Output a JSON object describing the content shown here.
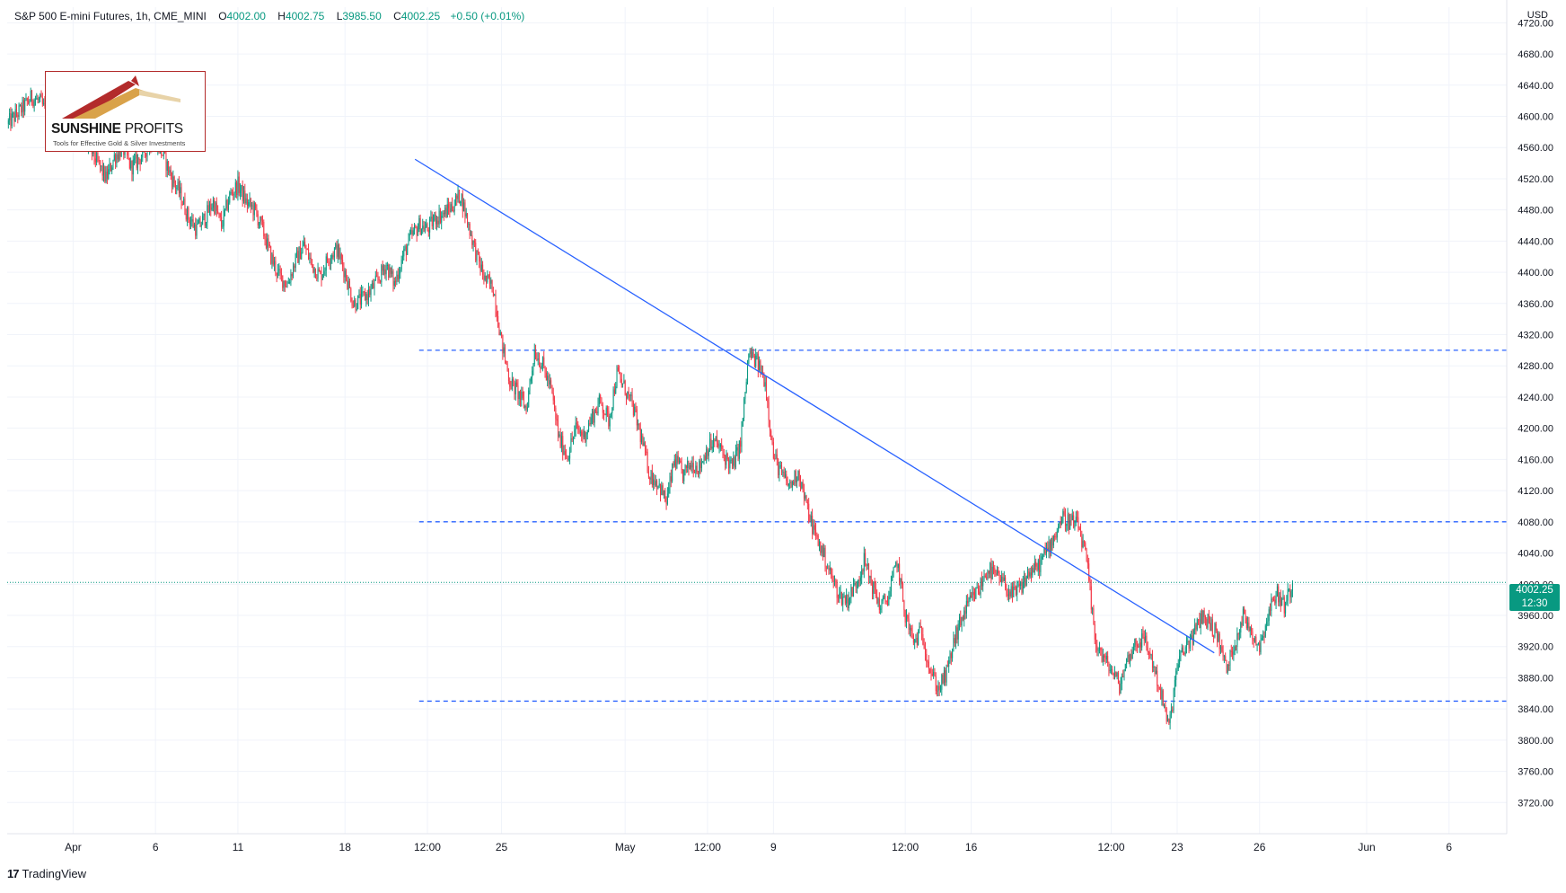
{
  "header": {
    "title": "S&P 500 E-mini Futures, 1h, CME_MINI",
    "open_label": "O",
    "open": "4002.00",
    "high_label": "H",
    "high": "4002.75",
    "low_label": "L",
    "low": "3985.50",
    "close_label": "C",
    "close": "4002.25",
    "change": "+0.50 (+0.01%)"
  },
  "currency": "USD",
  "logo": {
    "brand_bold": "SUNSHINE",
    "brand_light": " PROFITS",
    "tagline": "Tools for Effective Gold & Silver Investments"
  },
  "footer": {
    "brand": "TradingView",
    "icon": "tradingview-logo-icon"
  },
  "last_price_badge": {
    "price": "4002.25",
    "countdown": "12:30"
  },
  "colors": {
    "up": "#089981",
    "down": "#f23645",
    "trendline": "#2962ff",
    "dashed_levels": "#2962ff",
    "grid": "#f0f3fa",
    "price_line": "#089981"
  },
  "chart_data": {
    "type": "candlestick",
    "title": "S&P 500 E-mini Futures, 1h, CME_MINI",
    "ylim": [
      3680,
      4740
    ],
    "y_ticks": [
      "4720.00",
      "4680.00",
      "4640.00",
      "4600.00",
      "4560.00",
      "4520.00",
      "4480.00",
      "4440.00",
      "4400.00",
      "4360.00",
      "4320.00",
      "4280.00",
      "4240.00",
      "4200.00",
      "4160.00",
      "4120.00",
      "4080.00",
      "4040.00",
      "4000.00",
      "3960.00",
      "3920.00",
      "3880.00",
      "3840.00",
      "3800.00",
      "3760.00",
      "3720.00"
    ],
    "x_tick_labels": [
      "Apr",
      "6",
      "11",
      "18",
      "12:00",
      "25",
      "May",
      "12:00",
      "9",
      "12:00",
      "16",
      "12:00",
      "23",
      "26",
      "Jun",
      "6"
    ],
    "x_tick_index": [
      8,
      18,
      28,
      41,
      51,
      60,
      75,
      85,
      93,
      109,
      117,
      134,
      142,
      152,
      165,
      175
    ],
    "x_index_range": [
      0,
      182
    ],
    "grid": true,
    "horizontal_levels": [
      4300,
      4080,
      3850
    ],
    "horizontal_levels_start_index": 50,
    "trendline": {
      "from": {
        "i": 49.5,
        "y": 4545
      },
      "to": {
        "i": 146.5,
        "y": 3912
      }
    },
    "last_price": 4002.25,
    "series": [
      {
        "type": "ohlc_path",
        "path": [
          [
            0,
            4590
          ],
          [
            2,
            4612
          ],
          [
            3,
            4625
          ],
          [
            4,
            4618
          ],
          [
            5,
            4600
          ],
          [
            6,
            4580
          ],
          [
            7,
            4575
          ],
          [
            9,
            4572
          ],
          [
            10,
            4560
          ],
          [
            11,
            4540
          ],
          [
            12,
            4520
          ],
          [
            13,
            4548
          ],
          [
            14,
            4560
          ],
          [
            15,
            4535
          ],
          [
            16,
            4545
          ],
          [
            17,
            4560
          ],
          [
            18,
            4570
          ],
          [
            19,
            4548
          ],
          [
            20,
            4520
          ],
          [
            21,
            4500
          ],
          [
            22,
            4470
          ],
          [
            23,
            4455
          ],
          [
            24,
            4470
          ],
          [
            25,
            4490
          ],
          [
            26,
            4460
          ],
          [
            27,
            4498
          ],
          [
            28,
            4512
          ],
          [
            29,
            4490
          ],
          [
            30,
            4480
          ],
          [
            31,
            4455
          ],
          [
            32,
            4420
          ],
          [
            33,
            4395
          ],
          [
            34,
            4385
          ],
          [
            35,
            4415
          ],
          [
            36,
            4435
          ],
          [
            37,
            4410
          ],
          [
            38,
            4395
          ],
          [
            39,
            4420
          ],
          [
            40,
            4430
          ],
          [
            41,
            4400
          ],
          [
            42,
            4360
          ],
          [
            43,
            4365
          ],
          [
            44,
            4375
          ],
          [
            45,
            4390
          ],
          [
            46,
            4410
          ],
          [
            47,
            4385
          ],
          [
            48,
            4420
          ],
          [
            49,
            4445
          ],
          [
            50,
            4460
          ],
          [
            51,
            4455
          ],
          [
            52,
            4470
          ],
          [
            53,
            4475
          ],
          [
            54,
            4485
          ],
          [
            55,
            4500
          ],
          [
            56,
            4460
          ],
          [
            57,
            4420
          ],
          [
            58,
            4390
          ],
          [
            59,
            4380
          ],
          [
            60,
            4310
          ],
          [
            61,
            4260
          ],
          [
            62,
            4245
          ],
          [
            63,
            4225
          ],
          [
            64,
            4300
          ],
          [
            65,
            4280
          ],
          [
            66,
            4250
          ],
          [
            67,
            4185
          ],
          [
            68,
            4165
          ],
          [
            69,
            4200
          ],
          [
            70,
            4190
          ],
          [
            71,
            4215
          ],
          [
            72,
            4235
          ],
          [
            73,
            4210
          ],
          [
            74,
            4270
          ],
          [
            75,
            4250
          ],
          [
            76,
            4225
          ],
          [
            77,
            4185
          ],
          [
            78,
            4140
          ],
          [
            79,
            4130
          ],
          [
            80,
            4105
          ],
          [
            81,
            4160
          ],
          [
            82,
            4140
          ],
          [
            83,
            4155
          ],
          [
            84,
            4150
          ],
          [
            85,
            4175
          ],
          [
            86,
            4182
          ],
          [
            87,
            4165
          ],
          [
            88,
            4150
          ],
          [
            89,
            4180
          ],
          [
            90,
            4295
          ],
          [
            91,
            4285
          ],
          [
            92,
            4260
          ],
          [
            93,
            4165
          ],
          [
            94,
            4140
          ],
          [
            95,
            4125
          ],
          [
            96,
            4145
          ],
          [
            97,
            4100
          ],
          [
            98,
            4065
          ],
          [
            99,
            4040
          ],
          [
            100,
            4010
          ],
          [
            101,
            3985
          ],
          [
            102,
            3980
          ],
          [
            103,
            4000
          ],
          [
            104,
            4030
          ],
          [
            105,
            3998
          ],
          [
            106,
            3970
          ],
          [
            107,
            3985
          ],
          [
            108,
            4030
          ],
          [
            109,
            3960
          ],
          [
            110,
            3925
          ],
          [
            111,
            3940
          ],
          [
            112,
            3890
          ],
          [
            113,
            3865
          ],
          [
            114,
            3885
          ],
          [
            115,
            3930
          ],
          [
            116,
            3960
          ],
          [
            117,
            3980
          ],
          [
            118,
            3995
          ],
          [
            119,
            4020
          ],
          [
            120,
            4010
          ],
          [
            121,
            4000
          ],
          [
            122,
            3985
          ],
          [
            123,
            3995
          ],
          [
            124,
            4015
          ],
          [
            125,
            4020
          ],
          [
            126,
            4040
          ],
          [
            127,
            4060
          ],
          [
            128,
            4085
          ],
          [
            129,
            4080
          ],
          [
            130,
            4075
          ],
          [
            131,
            4030
          ],
          [
            132,
            3930
          ],
          [
            133,
            3905
          ],
          [
            134,
            3890
          ],
          [
            135,
            3870
          ],
          [
            136,
            3905
          ],
          [
            137,
            3925
          ],
          [
            138,
            3930
          ],
          [
            139,
            3900
          ],
          [
            140,
            3860
          ],
          [
            141,
            3815
          ],
          [
            142,
            3895
          ],
          [
            143,
            3920
          ],
          [
            144,
            3935
          ],
          [
            145,
            3960
          ],
          [
            146,
            3950
          ],
          [
            147,
            3930
          ],
          [
            148,
            3890
          ],
          [
            149,
            3925
          ],
          [
            150,
            3960
          ],
          [
            151,
            3940
          ],
          [
            152,
            3920
          ],
          [
            153,
            3960
          ],
          [
            154,
            3990
          ],
          [
            155,
            3972
          ],
          [
            156,
            4002.25
          ]
        ]
      }
    ]
  }
}
